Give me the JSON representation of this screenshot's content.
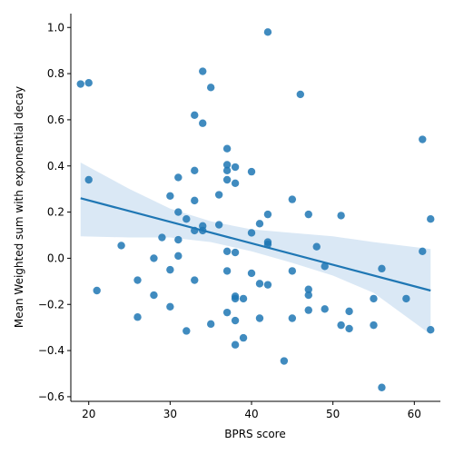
{
  "chart_data": {
    "type": "scatter",
    "title": "",
    "xlabel": "BPRS score",
    "ylabel": "Mean Weighted sum with exponential decay",
    "xlim": [
      17.8,
      63.2
    ],
    "ylim": [
      -0.62,
      1.06
    ],
    "x_ticks": [
      20,
      30,
      40,
      50,
      60
    ],
    "y_ticks": [
      -0.6,
      -0.4,
      -0.2,
      0.0,
      0.2,
      0.4,
      0.6,
      0.8,
      1.0
    ],
    "x_tick_labels": [
      "20",
      "30",
      "40",
      "50",
      "60"
    ],
    "y_tick_labels": [
      "−0.6",
      "−0.4",
      "−0.2",
      "0.0",
      "0.2",
      "0.4",
      "0.6",
      "0.8",
      "1.0"
    ],
    "grid": false,
    "colors": {
      "points": "#1f77b4",
      "line": "#1f77b4",
      "ci_band": "#c6dbef"
    },
    "points": [
      {
        "x": 19,
        "y": 0.755
      },
      {
        "x": 20,
        "y": 0.76
      },
      {
        "x": 20,
        "y": 0.34
      },
      {
        "x": 21,
        "y": -0.14
      },
      {
        "x": 24,
        "y": 0.055
      },
      {
        "x": 26,
        "y": -0.095
      },
      {
        "x": 26,
        "y": -0.255
      },
      {
        "x": 28,
        "y": 0.0
      },
      {
        "x": 28,
        "y": -0.16
      },
      {
        "x": 29,
        "y": 0.09
      },
      {
        "x": 30,
        "y": 0.27
      },
      {
        "x": 30,
        "y": -0.05
      },
      {
        "x": 30,
        "y": -0.21
      },
      {
        "x": 31,
        "y": 0.35
      },
      {
        "x": 31,
        "y": 0.2
      },
      {
        "x": 31,
        "y": 0.08
      },
      {
        "x": 31,
        "y": 0.01
      },
      {
        "x": 32,
        "y": 0.17
      },
      {
        "x": 32,
        "y": -0.315
      },
      {
        "x": 33,
        "y": 0.62
      },
      {
        "x": 33,
        "y": 0.38
      },
      {
        "x": 33,
        "y": 0.25
      },
      {
        "x": 33,
        "y": 0.12
      },
      {
        "x": 33,
        "y": -0.095
      },
      {
        "x": 34,
        "y": 0.81
      },
      {
        "x": 34,
        "y": 0.585
      },
      {
        "x": 34,
        "y": 0.14
      },
      {
        "x": 34,
        "y": 0.12
      },
      {
        "x": 35,
        "y": 0.74
      },
      {
        "x": 35,
        "y": -0.285
      },
      {
        "x": 36,
        "y": 0.275
      },
      {
        "x": 36,
        "y": 0.145
      },
      {
        "x": 37,
        "y": 0.475
      },
      {
        "x": 37,
        "y": 0.405
      },
      {
        "x": 37,
        "y": 0.38
      },
      {
        "x": 37,
        "y": 0.34
      },
      {
        "x": 37,
        "y": 0.03
      },
      {
        "x": 37,
        "y": -0.055
      },
      {
        "x": 37,
        "y": -0.235
      },
      {
        "x": 38,
        "y": 0.395
      },
      {
        "x": 38,
        "y": 0.325
      },
      {
        "x": 38,
        "y": 0.025
      },
      {
        "x": 38,
        "y": -0.165
      },
      {
        "x": 38,
        "y": -0.175
      },
      {
        "x": 38,
        "y": -0.27
      },
      {
        "x": 38,
        "y": -0.375
      },
      {
        "x": 39,
        "y": -0.175
      },
      {
        "x": 39,
        "y": -0.345
      },
      {
        "x": 40,
        "y": 0.375
      },
      {
        "x": 40,
        "y": 0.11
      },
      {
        "x": 40,
        "y": -0.065
      },
      {
        "x": 41,
        "y": 0.15
      },
      {
        "x": 41,
        "y": -0.11
      },
      {
        "x": 41,
        "y": -0.26
      },
      {
        "x": 42,
        "y": 0.98
      },
      {
        "x": 42,
        "y": 0.19
      },
      {
        "x": 42,
        "y": 0.07
      },
      {
        "x": 42,
        "y": 0.06
      },
      {
        "x": 42,
        "y": -0.115
      },
      {
        "x": 44,
        "y": -0.445
      },
      {
        "x": 45,
        "y": 0.255
      },
      {
        "x": 45,
        "y": -0.055
      },
      {
        "x": 45,
        "y": -0.26
      },
      {
        "x": 46,
        "y": 0.71
      },
      {
        "x": 47,
        "y": 0.19
      },
      {
        "x": 47,
        "y": -0.135
      },
      {
        "x": 47,
        "y": -0.16
      },
      {
        "x": 47,
        "y": -0.225
      },
      {
        "x": 48,
        "y": 0.05
      },
      {
        "x": 49,
        "y": -0.035
      },
      {
        "x": 49,
        "y": -0.22
      },
      {
        "x": 51,
        "y": 0.185
      },
      {
        "x": 51,
        "y": -0.29
      },
      {
        "x": 52,
        "y": -0.23
      },
      {
        "x": 52,
        "y": -0.305
      },
      {
        "x": 55,
        "y": -0.175
      },
      {
        "x": 55,
        "y": -0.29
      },
      {
        "x": 56,
        "y": -0.045
      },
      {
        "x": 56,
        "y": -0.56
      },
      {
        "x": 59,
        "y": -0.175
      },
      {
        "x": 61,
        "y": 0.515
      },
      {
        "x": 61,
        "y": 0.03
      },
      {
        "x": 62,
        "y": 0.17
      },
      {
        "x": 62,
        "y": -0.31
      }
    ],
    "regression": {
      "x": [
        19,
        62
      ],
      "y": [
        0.26,
        -0.14
      ]
    },
    "confidence_band": {
      "x": [
        19,
        25,
        30,
        35,
        40,
        45,
        50,
        55,
        62
      ],
      "upper": [
        0.415,
        0.3,
        0.215,
        0.16,
        0.125,
        0.11,
        0.095,
        0.07,
        0.04
      ],
      "lower": [
        0.095,
        0.09,
        0.09,
        0.07,
        0.03,
        -0.02,
        -0.075,
        -0.15,
        -0.33
      ]
    }
  }
}
